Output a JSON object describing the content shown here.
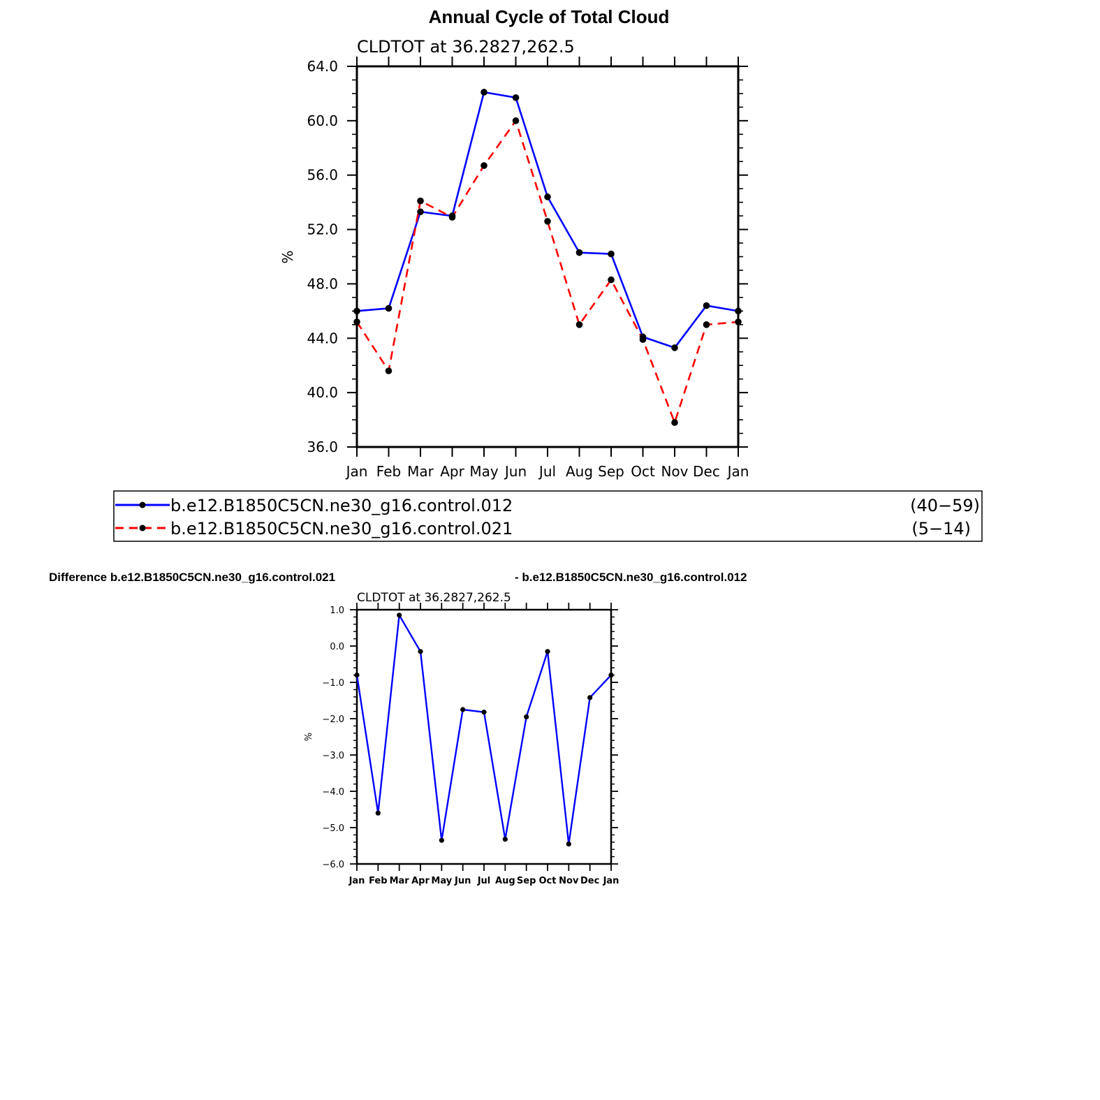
{
  "chart_data": [
    {
      "type": "line",
      "title": "Annual Cycle of Total Cloud",
      "subtitle": "CLDTOT at 36.2827,262.5",
      "ylabel": "%",
      "ylim": [
        36,
        64
      ],
      "yticks": [
        "36.0",
        "40.0",
        "44.0",
        "48.0",
        "52.0",
        "56.0",
        "60.0",
        "64.0"
      ],
      "categories": [
        "Jan",
        "Feb",
        "Mar",
        "Apr",
        "May",
        "Jun",
        "Jul",
        "Aug",
        "Sep",
        "Oct",
        "Nov",
        "Dec",
        "Jan"
      ],
      "series": [
        {
          "name": "b.e12.B1850C5CN.ne30_g16.control.012",
          "range": "(40−59)",
          "color": "#0000ff",
          "dash": "solid",
          "values": [
            46.0,
            46.2,
            53.3,
            53.0,
            62.1,
            61.7,
            54.4,
            50.3,
            50.2,
            44.1,
            43.3,
            46.4,
            46.0
          ]
        },
        {
          "name": "b.e12.B1850C5CN.ne30_g16.control.021",
          "range": "(5−14)",
          "color": "#ff0000",
          "dash": "dashed",
          "values": [
            45.2,
            41.6,
            54.1,
            52.9,
            56.7,
            60.0,
            52.6,
            45.0,
            48.3,
            43.9,
            37.8,
            45.0,
            45.2
          ]
        }
      ],
      "legend": "below"
    },
    {
      "type": "line",
      "title_left": "Difference b.e12.B1850C5CN.ne30_g16.control.021",
      "title_right": "- b.e12.B1850C5CN.ne30_g16.control.012",
      "subtitle": "CLDTOT at 36.2827,262.5",
      "ylabel": "%",
      "ylim": [
        -6,
        1
      ],
      "yticks": [
        "−6.0",
        "−5.0",
        "−4.0",
        "−3.0",
        "−2.0",
        "−1.0",
        "0.0",
        "1.0"
      ],
      "categories": [
        "Jan",
        "Feb",
        "Mar",
        "Apr",
        "May",
        "Jun",
        "Jul",
        "Aug",
        "Sep",
        "Oct",
        "Nov",
        "Dec",
        "Jan"
      ],
      "series": [
        {
          "color": "#0000ff",
          "values": [
            -0.8,
            -4.6,
            0.85,
            -0.15,
            -5.35,
            -1.75,
            -1.82,
            -5.32,
            -1.95,
            -0.15,
            -5.45,
            -1.42,
            -0.8
          ]
        }
      ]
    }
  ]
}
